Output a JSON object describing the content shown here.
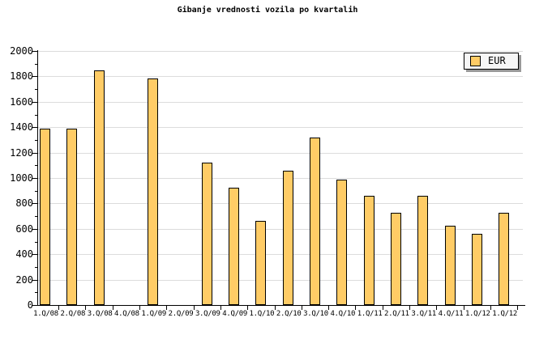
{
  "chart_data": {
    "type": "bar",
    "title": "Gibanje vrednosti vozila po kvartalih",
    "series_name": "EUR",
    "categories": [
      "1.Q/08",
      "2.Q/08",
      "3.Q/08",
      "4.Q/08",
      "1.Q/09",
      "2.Q/09",
      "3.Q/09",
      "4.Q/09",
      "1.Q/10",
      "2.Q/10",
      "3.Q/10",
      "4.Q/10",
      "1.Q/11",
      "2.Q/11",
      "3.Q/11",
      "4.Q/11",
      "1.Q/12",
      "1.Q/12"
    ],
    "values": [
      1390,
      1390,
      1845,
      0,
      1785,
      0,
      1120,
      925,
      665,
      1060,
      1320,
      990,
      860,
      725,
      860,
      625,
      560,
      725
    ],
    "ylim": [
      0,
      2000
    ],
    "ytick_step": 200,
    "yticks": [
      0,
      200,
      400,
      600,
      800,
      1000,
      1200,
      1400,
      1600,
      1800,
      2000
    ],
    "minor_ytick_step": 100,
    "grid": "horizontal",
    "legend_position": "top-right",
    "colors": {
      "bar_fill": "#FFCC66",
      "bar_border": "#000000",
      "grid": "#DCDCDC",
      "axis": "#000000",
      "background": "#FFFFFF",
      "legend_fill": "#F6F6F6",
      "legend_border": "#000000",
      "legend_shadow": "#999999",
      "text": "#000000"
    }
  }
}
